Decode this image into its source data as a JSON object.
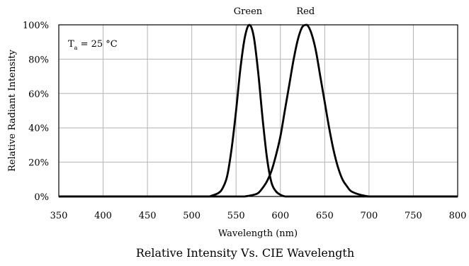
{
  "chart_data": {
    "type": "line",
    "title": "Relative Intensity Vs. CIE Wavelength",
    "xlabel": "Wavelength (nm)",
    "ylabel": "Relative Radiant Intensity",
    "xlim": [
      350,
      800
    ],
    "ylim": [
      0,
      100
    ],
    "xticks": [
      350,
      400,
      450,
      500,
      550,
      600,
      650,
      700,
      750,
      800
    ],
    "yticks": [
      0,
      20,
      40,
      60,
      80,
      100
    ],
    "ytick_labels": [
      "0%",
      "20%",
      "40%",
      "60%",
      "80%",
      "100%"
    ],
    "grid": true,
    "annotation": {
      "main": "T",
      "subscript": "a",
      "rest": " = 25 °C"
    },
    "series": [
      {
        "name": "Green",
        "color": "#000000",
        "x": [
          520,
          530,
          535,
          540,
          545,
          550,
          555,
          560,
          565,
          570,
          575,
          580,
          585,
          590,
          595,
          600,
          605
        ],
        "y": [
          0,
          2,
          5,
          12,
          28,
          50,
          75,
          93,
          100,
          93,
          72,
          45,
          22,
          8,
          3,
          1,
          0
        ]
      },
      {
        "name": "Red",
        "color": "#000000",
        "x": [
          560,
          570,
          575,
          580,
          585,
          590,
          595,
          600,
          605,
          610,
          615,
          620,
          625,
          630,
          635,
          640,
          645,
          650,
          655,
          660,
          665,
          670,
          675,
          680,
          690,
          700
        ],
        "y": [
          0,
          1,
          2,
          5,
          9,
          15,
          24,
          35,
          50,
          65,
          80,
          92,
          99,
          100,
          95,
          85,
          70,
          55,
          40,
          27,
          17,
          10,
          6,
          3,
          1,
          0
        ]
      }
    ]
  }
}
